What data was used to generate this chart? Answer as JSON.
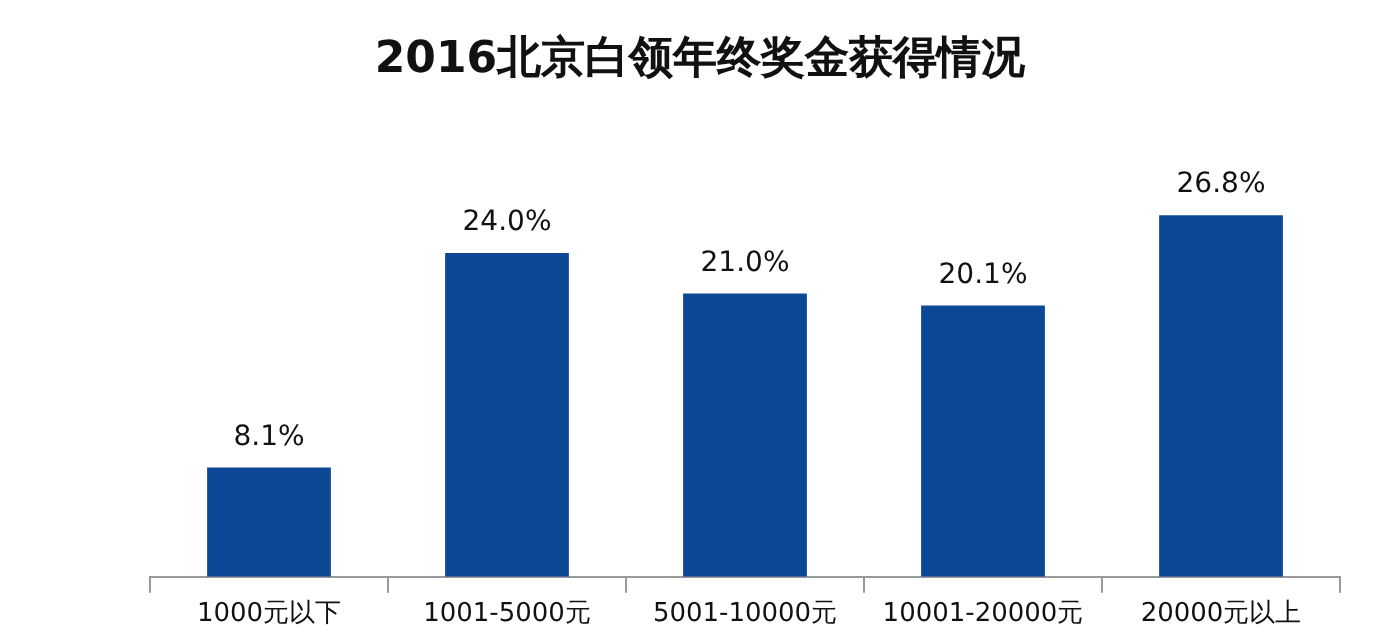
{
  "chart_data": {
    "type": "bar",
    "title": "2016北京白领年终奖金获得情况",
    "categories": [
      "1000元以下",
      "1001-5000元",
      "5001-10000元",
      "10001-20000元",
      "20000元以上"
    ],
    "values": [
      8.1,
      24.0,
      21.0,
      20.1,
      26.8
    ],
    "value_labels": [
      "8.1%",
      "24.0%",
      "21.0%",
      "20.1%",
      "26.8%"
    ],
    "color": "#0d4896",
    "grid": false,
    "legend": false
  }
}
